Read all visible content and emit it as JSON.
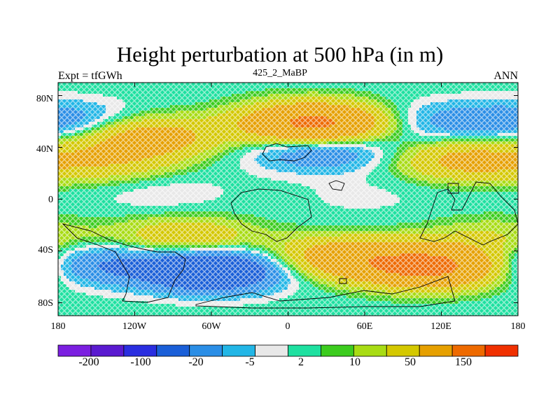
{
  "title": "Height perturbation at 500 hPa (in m)",
  "left_string": "Expt = tfGWh",
  "center_string": "425_2_MaBP",
  "right_string": "ANN",
  "lat_ticks": [
    "80N",
    "40N",
    "0",
    "40S",
    "80S"
  ],
  "lon_ticks": [
    "180",
    "120W",
    "60W",
    "0",
    "60E",
    "120E",
    "180"
  ],
  "colorbar": {
    "colors": [
      "#7b1fe0",
      "#5a1ad0",
      "#2a2ee0",
      "#1a5fd8",
      "#2b8ee6",
      "#22b6e6",
      "#e8e8e8",
      "#1ee0a0",
      "#3ccc1e",
      "#a8dc14",
      "#d4c800",
      "#e6a000",
      "#ee6a00",
      "#f03000"
    ],
    "labels": [
      "-200",
      "-100",
      "-20",
      "-5",
      "2",
      "10",
      "50",
      "150"
    ]
  },
  "chart_data": {
    "type": "heatmap",
    "title": "Height perturbation at 500 hPa (in m)",
    "xlabel": "",
    "ylabel": "",
    "x_range": [
      -180,
      180
    ],
    "y_range": [
      -90,
      90
    ],
    "levels": [
      -200,
      -100,
      -50,
      -20,
      -10,
      -5,
      -2,
      2,
      5,
      10,
      20,
      50,
      100,
      150,
      200
    ],
    "features": [
      {
        "lon": 20,
        "lat": 58,
        "value": 60
      },
      {
        "lon": -110,
        "lat": 48,
        "value": 30
      },
      {
        "lon": -170,
        "lat": 60,
        "value": -15
      },
      {
        "lon": 120,
        "lat": 60,
        "value": -12
      },
      {
        "lon": 25,
        "lat": 38,
        "value": -22
      },
      {
        "lon": -140,
        "lat": 28,
        "value": 15
      },
      {
        "lon": 140,
        "lat": 30,
        "value": 25
      },
      {
        "lon": -100,
        "lat": 5,
        "value": -5
      },
      {
        "lon": 60,
        "lat": 2,
        "value": -3
      },
      {
        "lon": -80,
        "lat": -30,
        "value": 20
      },
      {
        "lon": 40,
        "lat": -45,
        "value": 30
      },
      {
        "lon": 110,
        "lat": -52,
        "value": 60
      },
      {
        "lon": -150,
        "lat": -50,
        "value": -20
      },
      {
        "lon": -60,
        "lat": -55,
        "value": -50
      },
      {
        "lon": 160,
        "lat": -30,
        "value": 10
      }
    ]
  }
}
